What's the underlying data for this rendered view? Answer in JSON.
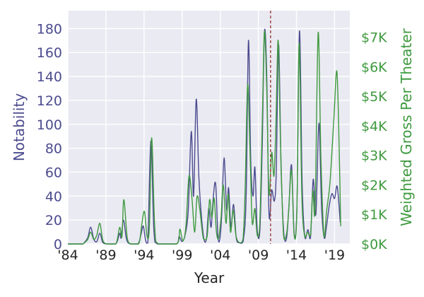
{
  "chart_data": {
    "type": "line",
    "xlabel": "Year",
    "ylabel_left": "Notability",
    "ylabel_right": "Weighted Gross Per Theater",
    "xlim": [
      1984,
      2021
    ],
    "ylim_left": [
      0,
      195
    ],
    "ylim_right": [
      0,
      7900
    ],
    "grid": true,
    "x_ticks": [
      1984,
      1989,
      1994,
      1999,
      2004,
      2009,
      2014,
      2019
    ],
    "x_tick_labels": [
      "'84",
      "'89",
      "'94",
      "'99",
      "'04",
      "'09",
      "'14",
      "'19"
    ],
    "y_left_ticks": [
      0,
      20,
      40,
      60,
      80,
      100,
      120,
      140,
      160,
      180
    ],
    "y_left_tick_labels": [
      "0",
      "20",
      "40",
      "60",
      "80",
      "100",
      "120",
      "140",
      "160",
      "180"
    ],
    "y_right_ticks": [
      0,
      1000,
      2000,
      3000,
      4000,
      5000,
      6000,
      7000
    ],
    "y_right_tick_labels": [
      "$0K",
      "$1K",
      "$2K",
      "$3K",
      "$4K",
      "$5K",
      "$6K",
      "$7K"
    ],
    "vline": {
      "x": 2010.6
    },
    "series": [
      {
        "axis": "left",
        "color": "#4b4b8f",
        "points": [
          [
            1986.0,
            0
          ],
          [
            1986.6,
            5
          ],
          [
            1987.0,
            14
          ],
          [
            1987.4,
            4
          ],
          [
            1987.8,
            2
          ],
          [
            1988.2,
            9
          ],
          [
            1988.6,
            1
          ],
          [
            1989.2,
            0
          ],
          [
            1990.3,
            0
          ],
          [
            1990.8,
            9
          ],
          [
            1991.0,
            5
          ],
          [
            1991.3,
            20
          ],
          [
            1991.7,
            4
          ],
          [
            1992.2,
            0
          ],
          [
            1993.2,
            0
          ],
          [
            1993.6,
            8
          ],
          [
            1993.9,
            15
          ],
          [
            1994.2,
            3
          ],
          [
            1994.5,
            1
          ],
          [
            1994.9,
            86
          ],
          [
            1995.3,
            10
          ],
          [
            1995.8,
            0
          ],
          [
            1998.2,
            0
          ],
          [
            1998.6,
            6
          ],
          [
            1999.0,
            2
          ],
          [
            1999.4,
            8
          ],
          [
            1999.8,
            28
          ],
          [
            2000.2,
            94
          ],
          [
            2000.5,
            40
          ],
          [
            2000.85,
            121
          ],
          [
            2001.2,
            55
          ],
          [
            2001.6,
            18
          ],
          [
            2001.9,
            3
          ],
          [
            2002.2,
            5
          ],
          [
            2002.5,
            30
          ],
          [
            2002.8,
            14
          ],
          [
            2003.1,
            40
          ],
          [
            2003.4,
            50
          ],
          [
            2003.7,
            6
          ],
          [
            2003.95,
            4
          ],
          [
            2004.2,
            25
          ],
          [
            2004.5,
            72
          ],
          [
            2004.85,
            28
          ],
          [
            2005.1,
            47
          ],
          [
            2005.4,
            14
          ],
          [
            2005.75,
            33
          ],
          [
            2006.1,
            5
          ],
          [
            2006.5,
            1
          ],
          [
            2007.0,
            2
          ],
          [
            2007.4,
            40
          ],
          [
            2007.7,
            170
          ],
          [
            2008.0,
            70
          ],
          [
            2008.3,
            40
          ],
          [
            2008.55,
            64
          ],
          [
            2008.85,
            12
          ],
          [
            2009.2,
            12
          ],
          [
            2009.5,
            80
          ],
          [
            2009.8,
            177
          ],
          [
            2010.1,
            140
          ],
          [
            2010.4,
            25
          ],
          [
            2010.75,
            45
          ],
          [
            2011.1,
            36
          ],
          [
            2011.35,
            60
          ],
          [
            2011.65,
            167
          ],
          [
            2012.0,
            60
          ],
          [
            2012.35,
            8
          ],
          [
            2012.7,
            5
          ],
          [
            2013.0,
            30
          ],
          [
            2013.35,
            66
          ],
          [
            2013.7,
            8
          ],
          [
            2014.05,
            30
          ],
          [
            2014.4,
            178
          ],
          [
            2014.75,
            50
          ],
          [
            2015.1,
            6
          ],
          [
            2015.5,
            12
          ],
          [
            2015.85,
            6
          ],
          [
            2016.2,
            54
          ],
          [
            2016.55,
            25
          ],
          [
            2016.95,
            101
          ],
          [
            2017.3,
            30
          ],
          [
            2017.65,
            5
          ],
          [
            2017.95,
            15
          ],
          [
            2018.3,
            32
          ],
          [
            2018.65,
            42
          ],
          [
            2019.0,
            38
          ],
          [
            2019.35,
            48
          ],
          [
            2019.75,
            18
          ]
        ]
      },
      {
        "axis": "right",
        "color": "#3f9a3f",
        "points": [
          [
            1986.0,
            0
          ],
          [
            1986.6,
            150
          ],
          [
            1987.0,
            400
          ],
          [
            1987.4,
            150
          ],
          [
            1987.8,
            300
          ],
          [
            1988.2,
            700
          ],
          [
            1988.6,
            120
          ],
          [
            1989.2,
            0
          ],
          [
            1990.3,
            0
          ],
          [
            1990.8,
            560
          ],
          [
            1991.1,
            250
          ],
          [
            1991.35,
            1500
          ],
          [
            1991.8,
            200
          ],
          [
            1992.3,
            0
          ],
          [
            1993.3,
            0
          ],
          [
            1993.7,
            650
          ],
          [
            1994.05,
            1100
          ],
          [
            1994.4,
            250
          ],
          [
            1994.7,
            600
          ],
          [
            1995.0,
            3600
          ],
          [
            1995.4,
            600
          ],
          [
            1995.9,
            0
          ],
          [
            1998.3,
            0
          ],
          [
            1998.7,
            500
          ],
          [
            1999.1,
            100
          ],
          [
            1999.5,
            600
          ],
          [
            1999.9,
            2300
          ],
          [
            2000.3,
            1500
          ],
          [
            2000.65,
            400
          ],
          [
            2000.95,
            1600
          ],
          [
            2001.3,
            1200
          ],
          [
            2001.7,
            300
          ],
          [
            2001.95,
            150
          ],
          [
            2002.3,
            300
          ],
          [
            2002.6,
            1500
          ],
          [
            2002.9,
            900
          ],
          [
            2003.2,
            1550
          ],
          [
            2003.5,
            400
          ],
          [
            2003.8,
            200
          ],
          [
            2004.1,
            900
          ],
          [
            2004.4,
            2000
          ],
          [
            2004.75,
            700
          ],
          [
            2005.05,
            1700
          ],
          [
            2005.35,
            400
          ],
          [
            2005.7,
            1150
          ],
          [
            2006.05,
            300
          ],
          [
            2006.5,
            50
          ],
          [
            2007.0,
            200
          ],
          [
            2007.3,
            2200
          ],
          [
            2007.6,
            5400
          ],
          [
            2007.95,
            2700
          ],
          [
            2008.2,
            700
          ],
          [
            2008.55,
            1200
          ],
          [
            2008.85,
            300
          ],
          [
            2009.2,
            800
          ],
          [
            2009.55,
            4500
          ],
          [
            2009.8,
            7200
          ],
          [
            2010.1,
            5200
          ],
          [
            2010.4,
            1700
          ],
          [
            2010.75,
            3100
          ],
          [
            2011.05,
            2300
          ],
          [
            2011.3,
            4000
          ],
          [
            2011.6,
            6900
          ],
          [
            2011.9,
            3500
          ],
          [
            2012.3,
            300
          ],
          [
            2012.7,
            350
          ],
          [
            2013.0,
            1200
          ],
          [
            2013.35,
            2500
          ],
          [
            2013.7,
            300
          ],
          [
            2014.05,
            1100
          ],
          [
            2014.35,
            6800
          ],
          [
            2014.7,
            1700
          ],
          [
            2015.05,
            300
          ],
          [
            2015.45,
            400
          ],
          [
            2015.85,
            350
          ],
          [
            2016.15,
            1800
          ],
          [
            2016.45,
            1200
          ],
          [
            2016.85,
            7150
          ],
          [
            2017.2,
            3000
          ],
          [
            2017.6,
            300
          ],
          [
            2017.95,
            1100
          ],
          [
            2018.4,
            2100
          ],
          [
            2018.9,
            4200
          ],
          [
            2019.3,
            5850
          ],
          [
            2019.6,
            3300
          ],
          [
            2019.8,
            600
          ]
        ]
      }
    ]
  }
}
